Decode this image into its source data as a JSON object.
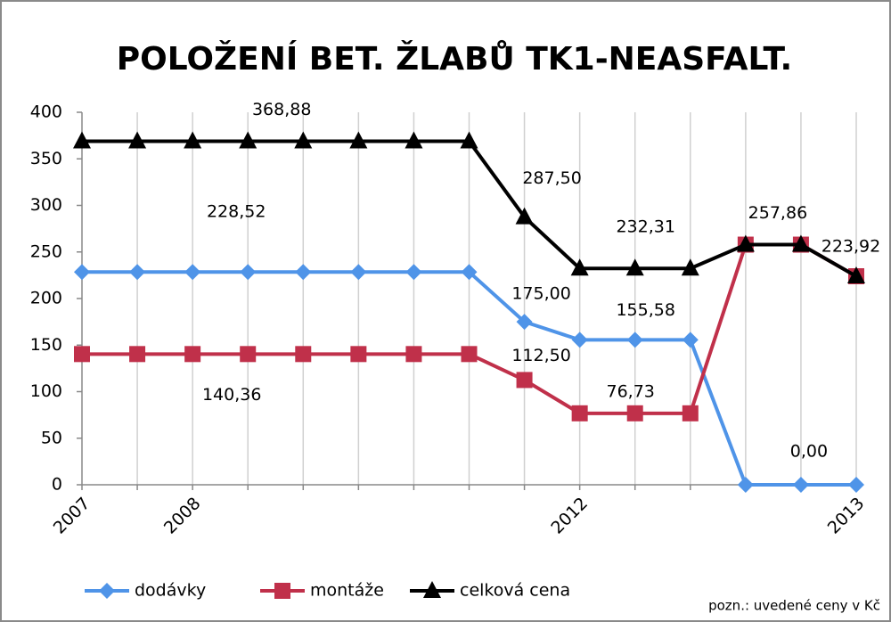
{
  "chart_data": {
    "type": "line",
    "title": "POLOŽENÍ BET. ŽLABŮ TK1-NEASFALT.",
    "note": "pozn.: uvedené ceny v Kč",
    "categories": [
      "2007",
      null,
      "2008",
      null,
      null,
      null,
      null,
      null,
      null,
      "2012",
      null,
      null,
      null,
      null,
      "2013"
    ],
    "ylim": [
      0,
      400
    ],
    "yticks": [
      0,
      50,
      100,
      150,
      200,
      250,
      300,
      350,
      400
    ],
    "grid": "vertical",
    "legend": "bottom",
    "series": [
      {
        "name": "dodávky",
        "color": "#4f94e8",
        "marker": "diamond",
        "values": [
          228.52,
          228.52,
          228.52,
          228.52,
          228.52,
          228.52,
          228.52,
          228.52,
          175.0,
          155.58,
          155.58,
          155.58,
          0,
          0,
          0
        ],
        "value_labels": [
          null,
          null,
          null,
          "228,52",
          null,
          null,
          null,
          null,
          "175,00",
          null,
          "155,58",
          null,
          null,
          "0,00",
          null
        ]
      },
      {
        "name": "montáže",
        "color": "#c0304a",
        "marker": "square",
        "values": [
          140.36,
          140.36,
          140.36,
          140.36,
          140.36,
          140.36,
          140.36,
          140.36,
          112.5,
          76.73,
          76.73,
          76.73,
          257.86,
          257.86,
          223.92
        ],
        "value_labels": [
          null,
          null,
          null,
          "140,36",
          null,
          null,
          null,
          null,
          "112,50",
          null,
          "76,73",
          null,
          null,
          null,
          null
        ]
      },
      {
        "name": "celková cena",
        "color": "#000000",
        "marker": "triangle",
        "values": [
          368.88,
          368.88,
          368.88,
          368.88,
          368.88,
          368.88,
          368.88,
          368.88,
          287.5,
          232.31,
          232.31,
          232.31,
          257.86,
          257.86,
          223.92
        ],
        "value_labels": [
          null,
          null,
          null,
          "368,88",
          null,
          null,
          null,
          null,
          "287,50",
          null,
          "232,31",
          null,
          null,
          "257,86",
          "223,92"
        ]
      }
    ]
  }
}
